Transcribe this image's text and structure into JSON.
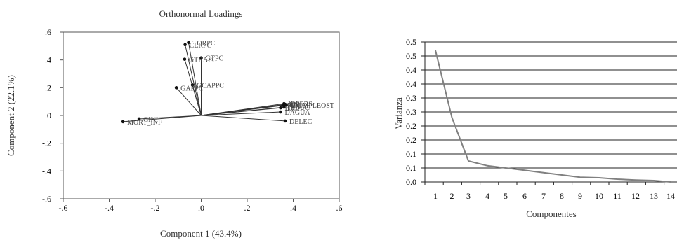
{
  "charts": {
    "left": {
      "title": "Orthonormal Loadings",
      "xlabel": "Component 1 (43.4%)",
      "ylabel": "Component 2 (22.1%)",
      "xticks": [
        ".6",
        ".4",
        ".2",
        ".0",
        "-.2",
        "-.4",
        "-.6"
      ],
      "yticks": [
        ".6",
        ".4",
        ".2",
        ".0",
        "-.2",
        "-.4",
        "-.6"
      ]
    },
    "right": {
      "xlabel": "Componentes",
      "ylabel": "Varianza",
      "yticks": [
        "0.5",
        "0.5",
        "0.4",
        "0.4",
        "0.3",
        "0.3",
        "0.2",
        "0.2",
        "0.1",
        "0.1",
        "0.0"
      ],
      "xticks": [
        "1",
        "2",
        "3",
        "4",
        "5",
        "6",
        "7",
        "8",
        "9",
        "10",
        "11",
        "12",
        "13",
        "14"
      ]
    }
  },
  "chart_data": [
    {
      "type": "scatter",
      "title": "Orthonormal Loadings",
      "xlabel": "Component 1 (43.4%)",
      "ylabel": "Component 2 (22.1%)",
      "xlim": [
        -0.6,
        0.6
      ],
      "ylim": [
        -0.6,
        0.6
      ],
      "grid": false,
      "vectors_from_origin": true,
      "points": [
        {
          "label": "TORPC",
          "x": -0.055,
          "y": 0.525
        },
        {
          "label": "CERPC",
          "x": -0.07,
          "y": 0.51
        },
        {
          "label": "GTPC",
          "x": 0.0,
          "y": 0.415
        },
        {
          "label": "GTRAPC",
          "x": -0.072,
          "y": 0.405
        },
        {
          "label": "GCAPPC",
          "x": -0.038,
          "y": 0.22
        },
        {
          "label": "GAPPC",
          "x": -0.108,
          "y": 0.2
        },
        {
          "label": "IDPERS",
          "x": 0.36,
          "y": 0.085
        },
        {
          "label": "IDH",
          "x": 0.365,
          "y": 0.08
        },
        {
          "label": "PIBPC",
          "x": 0.355,
          "y": 0.075
        },
        {
          "label": "IDEMPLEOST",
          "x": 0.37,
          "y": 0.075
        },
        {
          "label": "IEDUC",
          "x": 0.36,
          "y": 0.06
        },
        {
          "label": "IDOP",
          "x": 0.345,
          "y": 0.055
        },
        {
          "label": "DAGUA",
          "x": 0.345,
          "y": 0.025
        },
        {
          "label": "DELEC",
          "x": 0.365,
          "y": -0.04
        },
        {
          "label": "GINI",
          "x": -0.27,
          "y": -0.025
        },
        {
          "label": "MORT_INF",
          "x": -0.34,
          "y": -0.045
        }
      ]
    },
    {
      "type": "line",
      "xlabel": "Componentes",
      "ylabel": "Varianza",
      "x": [
        1,
        2,
        3,
        4,
        5,
        6,
        7,
        8,
        9,
        10,
        11,
        12,
        13,
        14
      ],
      "values": [
        0.47,
        0.23,
        0.075,
        0.058,
        0.05,
        0.042,
        0.033,
        0.025,
        0.017,
        0.015,
        0.01,
        0.007,
        0.005,
        0.0
      ],
      "ylim": [
        0.0,
        0.5
      ],
      "grid": true,
      "line_color": "#808080"
    }
  ]
}
